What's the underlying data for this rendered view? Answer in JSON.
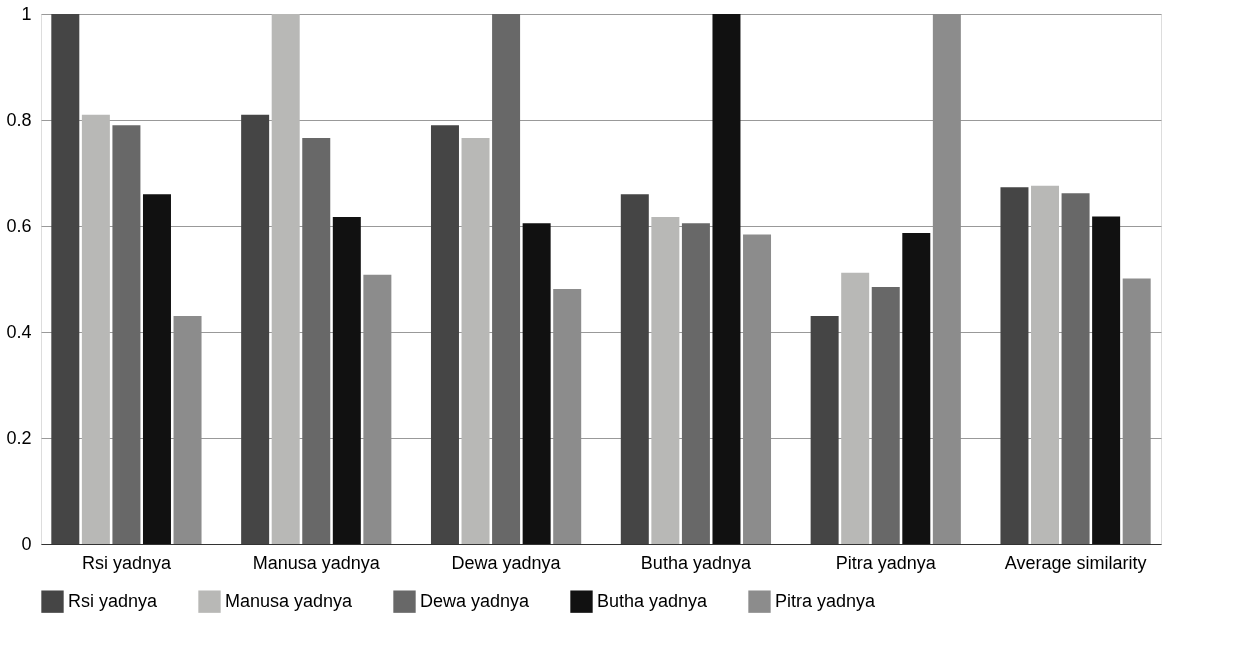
{
  "chart_data": {
    "type": "bar",
    "categories": [
      "Rsi yadnya",
      "Manusa yadnya",
      "Dewa yadnya",
      "Butha yadnya",
      "Pitra yadnya",
      "Average similarity"
    ],
    "series": [
      {
        "name": "Rsi yadnya",
        "color": "#454545",
        "values": [
          1,
          0.81,
          0.79,
          0.66,
          0.43,
          0.673
        ]
      },
      {
        "name": "Manusa yadnya",
        "color": "#b8b8b6",
        "values": [
          0.81,
          1,
          0.766,
          0.617,
          0.512,
          0.676
        ]
      },
      {
        "name": "Dewa yadnya",
        "color": "#686868",
        "values": [
          0.79,
          0.766,
          1,
          0.605,
          0.485,
          0.662
        ]
      },
      {
        "name": "Butha yadnya",
        "color": "#111111",
        "values": [
          0.66,
          0.617,
          0.605,
          1,
          0.587,
          0.618
        ]
      },
      {
        "name": "Pitra yadnya",
        "color": "#8c8c8c",
        "values": [
          0.43,
          0.508,
          0.481,
          0.584,
          1,
          0.501
        ]
      }
    ],
    "ylim": [
      0,
      1
    ],
    "yticks": [
      0,
      0.2,
      0.4,
      0.6,
      0.8,
      1
    ],
    "grid": "y",
    "legend": "bottom"
  }
}
